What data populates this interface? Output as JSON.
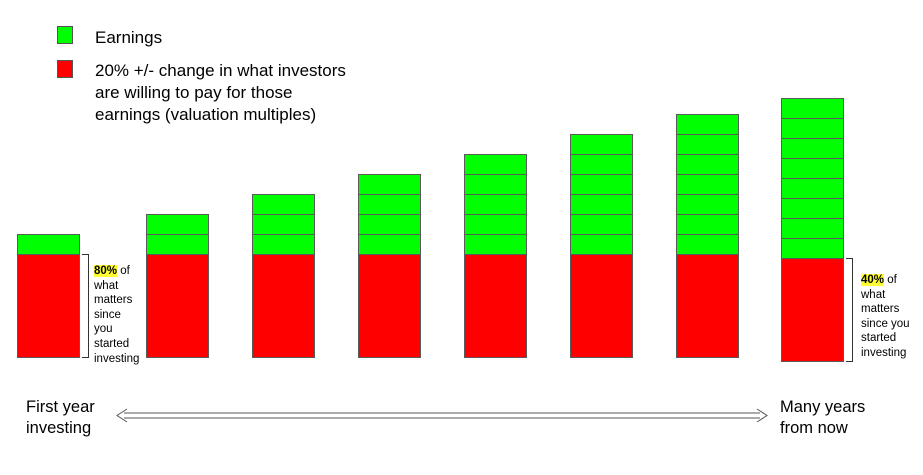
{
  "legend": {
    "items": [
      {
        "label": "Earnings",
        "color": "#00ff00"
      },
      {
        "label": "20% +/- change in what investors\nare willing to pay for those\nearnings (valuation multiples)",
        "color": "#ff0000"
      }
    ]
  },
  "chart_data": {
    "type": "bar",
    "stacked": true,
    "series": [
      {
        "segment": "valuation multiples",
        "color": "#ff0000",
        "units": [
          1,
          1,
          1,
          1,
          1,
          1,
          1,
          1
        ]
      },
      {
        "segment": "earnings",
        "color": "#00ff00",
        "units": [
          1,
          2,
          3,
          4,
          5,
          6,
          7,
          8
        ]
      }
    ]
  },
  "annotations": {
    "left": {
      "highlight": "80%",
      "text": " of\nwhat\nmatters\nsince\nyou\nstarted\ninvesting"
    },
    "right": {
      "highlight": "40%",
      "text": " of\nwhat\nmatters\nsince you\nstarted\ninvesting"
    }
  },
  "axis": {
    "left_label": "First year\ninvesting",
    "right_label": "Many years\nfrom now"
  }
}
